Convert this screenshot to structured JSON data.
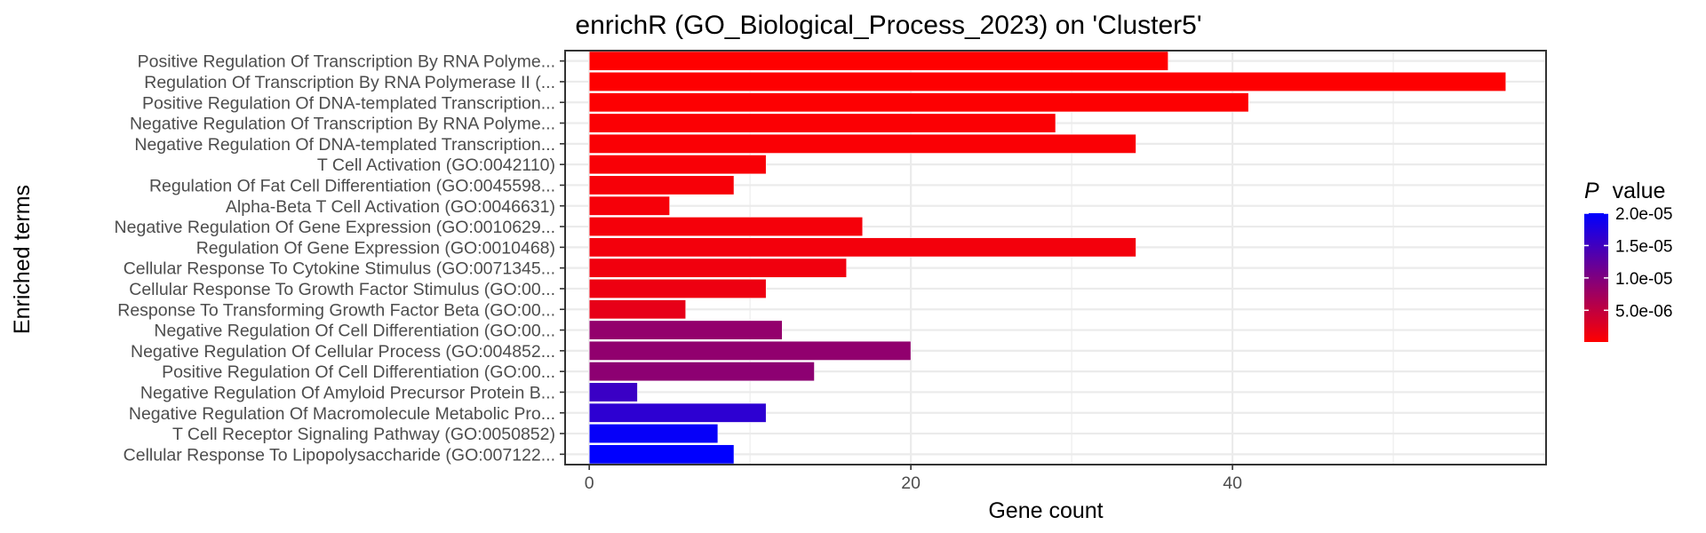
{
  "chart_data": {
    "type": "bar",
    "orientation": "horizontal",
    "title": "enrichR (GO_Biological_Process_2023) on 'Cluster5'",
    "xlabel": "Gene count",
    "ylabel": "Enriched terms",
    "xlim": [
      -1.5,
      59.5
    ],
    "xticks": [
      0,
      20,
      40
    ],
    "xtick_labels": [
      "0",
      "20",
      "40"
    ],
    "grid": true,
    "categories": [
      "Positive Regulation Of Transcription By RNA Polyme...",
      "Regulation Of Transcription By RNA Polymerase II (...",
      "Positive Regulation Of DNA-templated Transcription...",
      "Negative Regulation Of Transcription By RNA Polyme...",
      "Negative Regulation Of DNA-templated Transcription...",
      "T Cell Activation (GO:0042110)",
      "Regulation Of Fat Cell Differentiation (GO:0045598...",
      "Alpha-Beta T Cell Activation (GO:0046631)",
      "Negative Regulation Of Gene Expression (GO:0010629...",
      "Regulation Of Gene Expression (GO:0010468)",
      "Cellular Response To Cytokine Stimulus (GO:0071345...",
      "Cellular Response To Growth Factor Stimulus (GO:00...",
      "Response To Transforming Growth Factor Beta (GO:00...",
      "Negative Regulation Of Cell Differentiation (GO:00...",
      "Negative Regulation Of Cellular Process (GO:004852...",
      "Positive Regulation Of Cell Differentiation (GO:00...",
      "Negative Regulation Of Amyloid Precursor Protein B...",
      "Negative Regulation Of Macromolecule Metabolic Pro...",
      "T Cell Receptor Signaling Pathway (GO:0050852)",
      "Cellular Response To Lipopolysaccharide (GO:007122..."
    ],
    "values": [
      36,
      57,
      41,
      29,
      34,
      11,
      9,
      5,
      17,
      34,
      16,
      11,
      6,
      12,
      20,
      14,
      3,
      11,
      8,
      9
    ],
    "p_values": [
      1e-07,
      1.5e-07,
      2.5e-07,
      4e-07,
      5e-07,
      6e-07,
      7e-07,
      8e-07,
      9e-07,
      1e-06,
      1.2e-06,
      1.4e-06,
      2e-06,
      8.5e-06,
      8.7e-06,
      9e-06,
      1.55e-05,
      1.65e-05,
      1.95e-05,
      2e-05
    ],
    "legend": {
      "title_symbol": "P",
      "title_text": "value",
      "placement": "right",
      "color_low": "#ff0000",
      "color_high": "#0000ff",
      "range": [
        1e-07,
        2e-05
      ],
      "breaks": [
        5e-06,
        1e-05,
        1.5e-05,
        2e-05
      ],
      "break_labels": [
        "5.0e-06",
        "1.0e-05",
        "1.5e-05",
        "2.0e-05"
      ]
    }
  }
}
